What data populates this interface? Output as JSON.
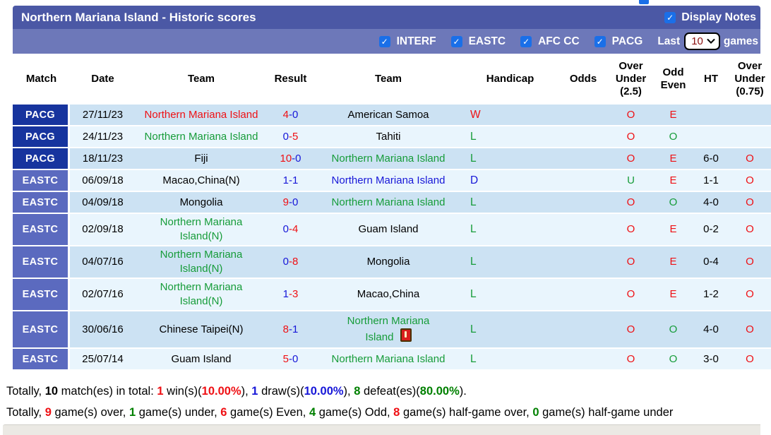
{
  "icons": {
    "check": "✓"
  },
  "colors": {
    "red": "#ef1014",
    "green": "#169c39",
    "green2": "#008000",
    "blue": "#1717d8",
    "black": "#000000",
    "badge_navy": "#17349e",
    "badge_indigo": "#5b6abf",
    "row_dark": "#cce2f3",
    "row_light": "#e9f5fd",
    "checkbox_blue": "#1a6fe8"
  },
  "header": {
    "title": "Northern Mariana Island - Historic scores",
    "display_notes_label": "Display Notes",
    "display_notes_checked": true,
    "filters": [
      {
        "label": "INTERF",
        "checked": true
      },
      {
        "label": "EASTC",
        "checked": true
      },
      {
        "label": "AFC CC",
        "checked": true
      },
      {
        "label": "PACG",
        "checked": true
      }
    ],
    "last_label": "Last",
    "games_count": "10",
    "games_label": "games"
  },
  "table": {
    "columns": [
      "Match",
      "Date",
      "Team",
      "Result",
      "Team",
      "Handicap",
      "Odds",
      "Over Under (2.5)",
      "Odd Even",
      "HT",
      "Over Under (0.75)"
    ],
    "rows": [
      {
        "competition": "PACG",
        "badge": "badge_navy",
        "date": "27/11/23",
        "team1": {
          "name": "Northern Mariana Island",
          "color": "red"
        },
        "score1": {
          "text": "4",
          "color": "red"
        },
        "score2": {
          "text": "0",
          "color": "blue"
        },
        "team2": {
          "name": "American Samoa",
          "color": "black"
        },
        "handicap": {
          "text": "W",
          "color": "red"
        },
        "odds": "",
        "ou25": {
          "text": "O",
          "color": "red"
        },
        "oddeven": {
          "text": "E",
          "color": "red"
        },
        "ht": "",
        "ou075": {
          "text": "",
          "color": "red"
        }
      },
      {
        "competition": "PACG",
        "badge": "badge_navy",
        "date": "24/11/23",
        "team1": {
          "name": "Northern Mariana Island",
          "color": "green"
        },
        "score1": {
          "text": "0",
          "color": "blue"
        },
        "score2": {
          "text": "5",
          "color": "red"
        },
        "team2": {
          "name": "Tahiti",
          "color": "black"
        },
        "handicap": {
          "text": "L",
          "color": "green"
        },
        "odds": "",
        "ou25": {
          "text": "O",
          "color": "red"
        },
        "oddeven": {
          "text": "O",
          "color": "green"
        },
        "ht": "",
        "ou075": {
          "text": "",
          "color": "red"
        }
      },
      {
        "competition": "PACG",
        "badge": "badge_navy",
        "date": "18/11/23",
        "team1": {
          "name": "Fiji",
          "color": "black"
        },
        "score1": {
          "text": "10",
          "color": "red"
        },
        "score2": {
          "text": "0",
          "color": "blue"
        },
        "team2": {
          "name": "Northern Mariana Island",
          "color": "green"
        },
        "handicap": {
          "text": "L",
          "color": "green"
        },
        "odds": "",
        "ou25": {
          "text": "O",
          "color": "red"
        },
        "oddeven": {
          "text": "E",
          "color": "red"
        },
        "ht": "6-0",
        "ou075": {
          "text": "O",
          "color": "red"
        }
      },
      {
        "competition": "EASTC",
        "badge": "badge_indigo",
        "date": "06/09/18",
        "team1": {
          "name": "Macao,China(N)",
          "color": "black"
        },
        "score1": {
          "text": "1",
          "color": "blue"
        },
        "score2": {
          "text": "1",
          "color": "blue"
        },
        "team2": {
          "name": "Northern Mariana Island",
          "color": "blue"
        },
        "handicap": {
          "text": "D",
          "color": "blue"
        },
        "odds": "",
        "ou25": {
          "text": "U",
          "color": "green"
        },
        "oddeven": {
          "text": "E",
          "color": "red"
        },
        "ht": "1-1",
        "ou075": {
          "text": "O",
          "color": "red"
        }
      },
      {
        "competition": "EASTC",
        "badge": "badge_indigo",
        "date": "04/09/18",
        "team1": {
          "name": "Mongolia",
          "color": "black"
        },
        "score1": {
          "text": "9",
          "color": "red"
        },
        "score2": {
          "text": "0",
          "color": "blue"
        },
        "team2": {
          "name": "Northern Mariana Island",
          "color": "green"
        },
        "handicap": {
          "text": "L",
          "color": "green"
        },
        "odds": "",
        "ou25": {
          "text": "O",
          "color": "red"
        },
        "oddeven": {
          "text": "O",
          "color": "green"
        },
        "ht": "4-0",
        "ou075": {
          "text": "O",
          "color": "red"
        }
      },
      {
        "competition": "EASTC",
        "badge": "badge_indigo",
        "date": "02/09/18",
        "team1": {
          "name": "Northern Mariana Island(N)",
          "color": "green"
        },
        "score1": {
          "text": "0",
          "color": "blue"
        },
        "score2": {
          "text": "4",
          "color": "red"
        },
        "team2": {
          "name": "Guam Island",
          "color": "black"
        },
        "handicap": {
          "text": "L",
          "color": "green"
        },
        "odds": "",
        "ou25": {
          "text": "O",
          "color": "red"
        },
        "oddeven": {
          "text": "E",
          "color": "red"
        },
        "ht": "0-2",
        "ou075": {
          "text": "O",
          "color": "red"
        }
      },
      {
        "competition": "EASTC",
        "badge": "badge_indigo",
        "date": "04/07/16",
        "team1": {
          "name": "Northern Mariana Island(N)",
          "color": "green"
        },
        "score1": {
          "text": "0",
          "color": "blue"
        },
        "score2": {
          "text": "8",
          "color": "red"
        },
        "team2": {
          "name": "Mongolia",
          "color": "black"
        },
        "handicap": {
          "text": "L",
          "color": "green"
        },
        "odds": "",
        "ou25": {
          "text": "O",
          "color": "red"
        },
        "oddeven": {
          "text": "E",
          "color": "red"
        },
        "ht": "0-4",
        "ou075": {
          "text": "O",
          "color": "red"
        }
      },
      {
        "competition": "EASTC",
        "badge": "badge_indigo",
        "date": "02/07/16",
        "team1": {
          "name": "Northern Mariana Island(N)",
          "color": "green"
        },
        "score1": {
          "text": "1",
          "color": "blue"
        },
        "score2": {
          "text": "3",
          "color": "red"
        },
        "team2": {
          "name": "Macao,China",
          "color": "black"
        },
        "handicap": {
          "text": "L",
          "color": "green"
        },
        "odds": "",
        "ou25": {
          "text": "O",
          "color": "red"
        },
        "oddeven": {
          "text": "E",
          "color": "red"
        },
        "ht": "1-2",
        "ou075": {
          "text": "O",
          "color": "red"
        }
      },
      {
        "competition": "EASTC",
        "badge": "badge_indigo",
        "date": "30/06/16",
        "team1": {
          "name": "Chinese Taipei(N)",
          "color": "black"
        },
        "score1": {
          "text": "8",
          "color": "red"
        },
        "score2": {
          "text": "1",
          "color": "blue"
        },
        "team2": {
          "name": "Northern Mariana Island",
          "color": "green",
          "lines": [
            "Northern Mariana",
            "Island"
          ],
          "red_card": true
        },
        "handicap": {
          "text": "L",
          "color": "green"
        },
        "odds": "",
        "ou25": {
          "text": "O",
          "color": "red"
        },
        "oddeven": {
          "text": "O",
          "color": "green"
        },
        "ht": "4-0",
        "ou075": {
          "text": "O",
          "color": "red"
        }
      },
      {
        "competition": "EASTC",
        "badge": "badge_indigo",
        "date": "25/07/14",
        "team1": {
          "name": "Guam Island",
          "color": "black"
        },
        "score1": {
          "text": "5",
          "color": "red"
        },
        "score2": {
          "text": "0",
          "color": "blue"
        },
        "team2": {
          "name": "Northern Mariana Island",
          "color": "green"
        },
        "handicap": {
          "text": "L",
          "color": "green"
        },
        "odds": "",
        "ou25": {
          "text": "O",
          "color": "red"
        },
        "oddeven": {
          "text": "O",
          "color": "green"
        },
        "ht": "3-0",
        "ou075": {
          "text": "O",
          "color": "red"
        }
      }
    ]
  },
  "summary": {
    "line1": [
      {
        "t": "Totally, "
      },
      {
        "t": "10",
        "b": true
      },
      {
        "t": " match(es) in total: "
      },
      {
        "t": "1",
        "c": "red",
        "b": true
      },
      {
        "t": " win(s)("
      },
      {
        "t": "10.00%",
        "c": "red",
        "b": true
      },
      {
        "t": "), "
      },
      {
        "t": "1",
        "c": "blue",
        "b": true
      },
      {
        "t": " draw(s)("
      },
      {
        "t": "10.00%",
        "c": "blue",
        "b": true
      },
      {
        "t": "), "
      },
      {
        "t": "8",
        "c": "green2",
        "b": true
      },
      {
        "t": " defeat(es)("
      },
      {
        "t": "80.00%",
        "c": "green2",
        "b": true
      },
      {
        "t": ")."
      }
    ],
    "line2": [
      {
        "t": "Totally, "
      },
      {
        "t": "9",
        "c": "red",
        "b": true
      },
      {
        "t": " game(s) over, "
      },
      {
        "t": "1",
        "c": "green2",
        "b": true
      },
      {
        "t": " game(s) under, "
      },
      {
        "t": "6",
        "c": "red",
        "b": true
      },
      {
        "t": " game(s) Even, "
      },
      {
        "t": "4",
        "c": "green2",
        "b": true
      },
      {
        "t": " game(s) Odd, "
      },
      {
        "t": "8",
        "c": "red",
        "b": true
      },
      {
        "t": " game(s) half-game over, "
      },
      {
        "t": "0",
        "c": "green2",
        "b": true
      },
      {
        "t": " game(s) half-game under"
      }
    ]
  }
}
